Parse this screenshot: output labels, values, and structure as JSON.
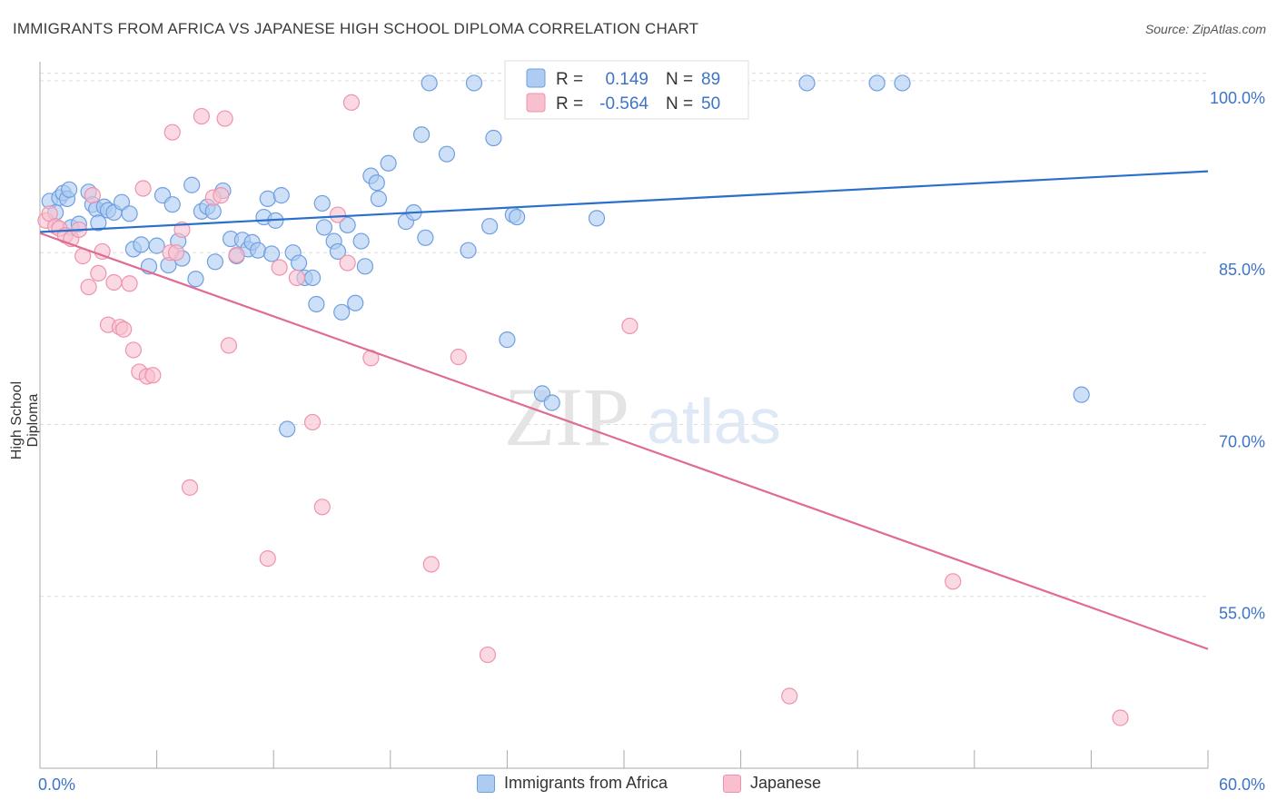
{
  "title": "IMMIGRANTS FROM AFRICA VS JAPANESE HIGH SCHOOL DIPLOMA CORRELATION CHART",
  "source": "Source: ZipAtlas.com",
  "watermark": {
    "zip": "ZIP",
    "atlas": "atlas"
  },
  "legend_top": {
    "rows": [
      {
        "r_label": "R =",
        "r_value": "0.149",
        "n_label": "N =",
        "n_value": "89"
      },
      {
        "r_label": "R =",
        "r_value": "-0.564",
        "n_label": "N =",
        "n_value": "50"
      }
    ]
  },
  "legend_bottom": {
    "series0": "Immigrants from Africa",
    "series1": "Japanese"
  },
  "colors": {
    "africa_fill": "#aecbf2",
    "africa_stroke": "#6f9fe0",
    "africa_line": "#2a6fcc",
    "japanese_fill": "#f8bfcf",
    "japanese_stroke": "#ee93ad",
    "japanese_line": "#e06b94",
    "tick_label": "#3d74c9",
    "grid": "#dddddd"
  },
  "chart_data": {
    "type": "scatter",
    "title": "IMMIGRANTS FROM AFRICA VS JAPANESE HIGH SCHOOL DIPLOMA CORRELATION CHART",
    "xlabel": "",
    "ylabel": "High School Diploma",
    "xlim": [
      0,
      60
    ],
    "ylim": [
      40,
      101.5
    ],
    "x_tick_labels": [
      "0.0%",
      "60.0%"
    ],
    "y_ticks": [
      55,
      70,
      85,
      100
    ],
    "y_tick_labels": [
      "55.0%",
      "70.0%",
      "85.0%",
      "100.0%"
    ],
    "grid": true,
    "legend_placement": "top-center",
    "series": [
      {
        "name": "Immigrants from Africa",
        "r": 0.149,
        "n": 89,
        "trend": {
          "x0": 0,
          "y0": 86.8,
          "x1": 60,
          "y1": 92.1
        },
        "points": [
          [
            0.5,
            89.5
          ],
          [
            0.8,
            88.5
          ],
          [
            1.0,
            89.8
          ],
          [
            1.2,
            90.2
          ],
          [
            1.4,
            89.7
          ],
          [
            1.5,
            90.5
          ],
          [
            1.6,
            87.2
          ],
          [
            2.0,
            87.5
          ],
          [
            2.5,
            90.3
          ],
          [
            2.7,
            89.2
          ],
          [
            2.9,
            88.8
          ],
          [
            3.0,
            87.6
          ],
          [
            3.3,
            89.0
          ],
          [
            3.5,
            88.7
          ],
          [
            3.8,
            88.5
          ],
          [
            4.2,
            89.4
          ],
          [
            4.6,
            88.4
          ],
          [
            4.8,
            85.3
          ],
          [
            5.2,
            85.7
          ],
          [
            5.6,
            83.8
          ],
          [
            6.0,
            85.6
          ],
          [
            6.3,
            90.0
          ],
          [
            6.6,
            83.9
          ],
          [
            6.8,
            89.2
          ],
          [
            7.1,
            86.0
          ],
          [
            7.3,
            84.5
          ],
          [
            7.8,
            90.9
          ],
          [
            8.0,
            82.7
          ],
          [
            8.3,
            88.6
          ],
          [
            8.6,
            89.0
          ],
          [
            8.9,
            88.6
          ],
          [
            9.0,
            84.2
          ],
          [
            9.4,
            90.4
          ],
          [
            9.8,
            86.2
          ],
          [
            10.1,
            84.7
          ],
          [
            10.4,
            86.1
          ],
          [
            10.7,
            85.3
          ],
          [
            10.9,
            85.9
          ],
          [
            11.2,
            85.2
          ],
          [
            11.5,
            88.1
          ],
          [
            11.7,
            89.7
          ],
          [
            11.9,
            84.9
          ],
          [
            12.1,
            87.8
          ],
          [
            12.4,
            90.0
          ],
          [
            12.7,
            69.6
          ],
          [
            13.0,
            85.0
          ],
          [
            13.3,
            84.1
          ],
          [
            13.6,
            82.8
          ],
          [
            14.0,
            82.8
          ],
          [
            14.2,
            80.5
          ],
          [
            14.5,
            89.3
          ],
          [
            14.6,
            87.2
          ],
          [
            15.1,
            86.0
          ],
          [
            15.3,
            85.1
          ],
          [
            15.5,
            79.8
          ],
          [
            15.8,
            87.4
          ],
          [
            16.2,
            80.6
          ],
          [
            16.5,
            86.0
          ],
          [
            16.7,
            83.8
          ],
          [
            17.0,
            91.7
          ],
          [
            17.3,
            91.1
          ],
          [
            17.4,
            89.7
          ],
          [
            17.9,
            92.8
          ],
          [
            18.8,
            87.7
          ],
          [
            19.2,
            88.5
          ],
          [
            19.6,
            95.3
          ],
          [
            19.8,
            86.3
          ],
          [
            20.0,
            99.8
          ],
          [
            20.9,
            93.6
          ],
          [
            22.0,
            85.2
          ],
          [
            22.3,
            99.8
          ],
          [
            23.1,
            87.3
          ],
          [
            23.3,
            95.0
          ],
          [
            24.0,
            77.4
          ],
          [
            24.3,
            88.3
          ],
          [
            24.5,
            88.1
          ],
          [
            25.8,
            72.7
          ],
          [
            26.3,
            71.9
          ],
          [
            27.4,
            99.8
          ],
          [
            28.6,
            88.0
          ],
          [
            30.3,
            99.8
          ],
          [
            32.8,
            99.8
          ],
          [
            33.5,
            99.8
          ],
          [
            34.5,
            99.8
          ],
          [
            36.0,
            99.8
          ],
          [
            39.4,
            99.8
          ],
          [
            43.0,
            99.8
          ],
          [
            44.3,
            99.8
          ],
          [
            53.5,
            72.6
          ]
        ]
      },
      {
        "name": "Japanese",
        "r": -0.564,
        "n": 50,
        "trend": {
          "x0": 0,
          "y0": 86.7,
          "x1": 60,
          "y1": 50.4
        },
        "points": [
          [
            0.3,
            87.8
          ],
          [
            0.5,
            88.4
          ],
          [
            0.8,
            87.3
          ],
          [
            1.0,
            87.1
          ],
          [
            1.3,
            86.5
          ],
          [
            1.6,
            86.2
          ],
          [
            2.0,
            87.0
          ],
          [
            2.2,
            84.7
          ],
          [
            2.5,
            82.0
          ],
          [
            2.7,
            90.0
          ],
          [
            3.0,
            83.2
          ],
          [
            3.2,
            85.1
          ],
          [
            3.5,
            78.7
          ],
          [
            3.8,
            82.4
          ],
          [
            4.1,
            78.5
          ],
          [
            4.3,
            78.3
          ],
          [
            4.6,
            82.3
          ],
          [
            4.8,
            76.5
          ],
          [
            5.1,
            74.6
          ],
          [
            5.3,
            90.6
          ],
          [
            5.5,
            74.2
          ],
          [
            5.8,
            74.3
          ],
          [
            6.7,
            85.0
          ],
          [
            6.8,
            95.5
          ],
          [
            7.0,
            85.0
          ],
          [
            7.3,
            87.0
          ],
          [
            7.7,
            64.5
          ],
          [
            8.3,
            96.9
          ],
          [
            8.9,
            89.8
          ],
          [
            9.3,
            90.0
          ],
          [
            9.5,
            96.7
          ],
          [
            9.7,
            76.9
          ],
          [
            10.1,
            84.8
          ],
          [
            11.7,
            58.3
          ],
          [
            12.3,
            83.7
          ],
          [
            13.2,
            82.8
          ],
          [
            14.0,
            70.2
          ],
          [
            14.5,
            62.8
          ],
          [
            15.3,
            88.3
          ],
          [
            15.8,
            84.1
          ],
          [
            16.0,
            98.1
          ],
          [
            17.0,
            75.8
          ],
          [
            20.1,
            57.8
          ],
          [
            21.5,
            75.9
          ],
          [
            23.0,
            49.9
          ],
          [
            30.3,
            78.6
          ],
          [
            34.9,
            99.9
          ],
          [
            38.5,
            46.3
          ],
          [
            46.9,
            56.3
          ],
          [
            55.5,
            44.4
          ]
        ]
      }
    ]
  }
}
